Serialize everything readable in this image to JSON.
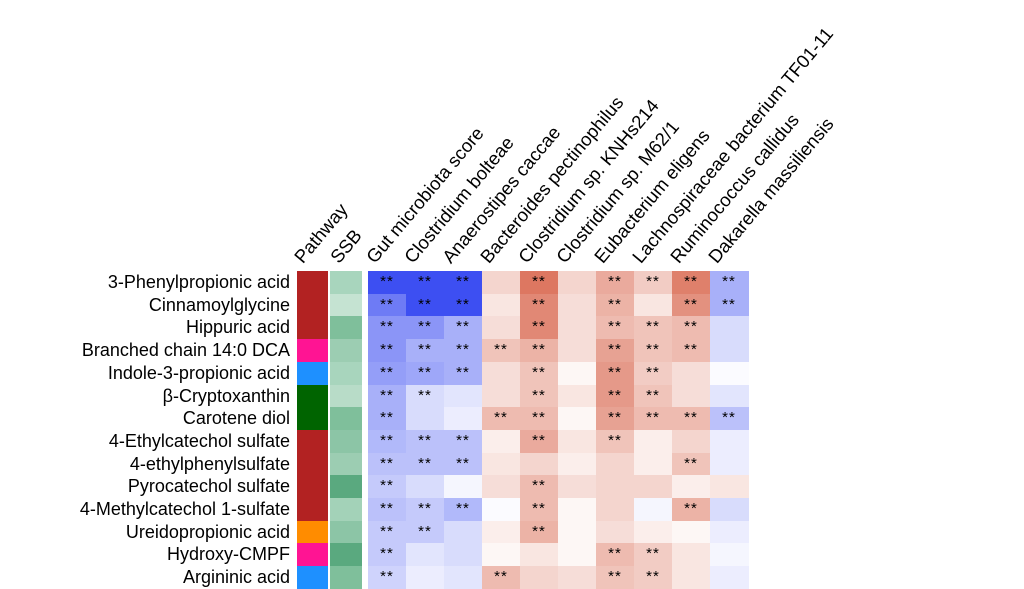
{
  "chart_data": {
    "type": "heatmap",
    "title": "",
    "annotation_columns": [
      "Pathway",
      "SSB"
    ],
    "columns": [
      "Gut microbiota score",
      "Clostridium bolteae",
      "Anaerostipes caccae",
      "Bacteroides pectinophilus",
      "Clostridium sp. KNHs214",
      "Clostridium sp. M62/1",
      "Eubacterium eligens",
      "Lachnospiraceae bacterium TF01-11",
      "Ruminococcus callidus",
      "Dakarella massiliensis"
    ],
    "rows": [
      "3-Phenylpropionic acid",
      "Cinnamoylglycine",
      "Hippuric acid",
      "Branched chain 14:0 DCA",
      "Indole-3-propionic acid",
      "β-Cryptoxanthin",
      "Carotene diol",
      "4-Ethylcatechol sulfate",
      "4-ethylphenylsulfate",
      "Pyrocatechol sulfate",
      "4-Methylcatechol 1-sulfate",
      "Ureidopropionic acid",
      "Hydroxy-CMPF",
      "Argininic acid"
    ],
    "pathway_colors": [
      "#b22222",
      "#b22222",
      "#b22222",
      "#ff1493",
      "#1e90ff",
      "#006400",
      "#006400",
      "#b22222",
      "#b22222",
      "#b22222",
      "#b22222",
      "#ff8c00",
      "#ff1493",
      "#1e90ff"
    ],
    "ssb_colors": [
      "#a8d5bd",
      "#c5e3d2",
      "#7fbf9b",
      "#9ccdb2",
      "#a8d5bd",
      "#b8dcc8",
      "#7fbf9b",
      "#8cc5a6",
      "#9ccdb2",
      "#5aa97f",
      "#a3d2b8",
      "#8cc5a6",
      "#5aa97f",
      "#7fbf9b"
    ],
    "values": [
      [
        -1,
        -1,
        -1,
        0.25,
        0.8,
        0.25,
        0.5,
        0.3,
        0.75,
        -0.45
      ],
      [
        -0.75,
        -1,
        -1,
        0.15,
        0.7,
        0.2,
        0.45,
        0.15,
        0.65,
        -0.45
      ],
      [
        -0.6,
        -0.6,
        -0.45,
        0.2,
        0.7,
        0.2,
        0.4,
        0.35,
        0.4,
        -0.2
      ],
      [
        -0.6,
        -0.45,
        -0.45,
        0.35,
        0.45,
        0.2,
        0.55,
        0.35,
        0.4,
        -0.2
      ],
      [
        -0.55,
        -0.5,
        -0.45,
        0.2,
        0.35,
        0.05,
        0.6,
        0.3,
        0.2,
        -0.02
      ],
      [
        -0.45,
        -0.2,
        -0.15,
        0.2,
        0.35,
        0.15,
        0.6,
        0.35,
        0.2,
        -0.15
      ],
      [
        -0.45,
        -0.2,
        -0.1,
        0.4,
        0.4,
        0.05,
        0.55,
        0.4,
        0.4,
        -0.35
      ],
      [
        -0.4,
        -0.35,
        -0.35,
        0.1,
        0.5,
        0.15,
        0.35,
        0.1,
        0.25,
        -0.1
      ],
      [
        -0.35,
        -0.35,
        -0.35,
        0.15,
        0.25,
        0.1,
        0.25,
        0.1,
        0.35,
        -0.1
      ],
      [
        -0.3,
        -0.2,
        -0.05,
        0.2,
        0.4,
        0.2,
        0.25,
        0.25,
        0.1,
        0.15
      ],
      [
        -0.35,
        -0.3,
        -0.4,
        -0.02,
        0.4,
        0.05,
        0.25,
        -0.05,
        0.45,
        -0.2
      ],
      [
        -0.3,
        -0.3,
        -0.2,
        0.1,
        0.45,
        0.05,
        0.2,
        0.1,
        0.05,
        -0.1
      ],
      [
        -0.3,
        -0.15,
        -0.2,
        0.05,
        0.15,
        0.05,
        0.4,
        0.3,
        0.15,
        -0.05
      ],
      [
        -0.25,
        -0.1,
        -0.15,
        0.4,
        0.25,
        0.2,
        0.35,
        0.3,
        0.15,
        -0.1
      ]
    ],
    "significance": [
      [
        "**",
        "**",
        "**",
        "",
        "**",
        "",
        "**",
        "**",
        "**",
        "**"
      ],
      [
        "**",
        "**",
        "**",
        "",
        "**",
        "",
        "**",
        "",
        "**",
        "**"
      ],
      [
        "**",
        "**",
        "**",
        "",
        "**",
        "",
        "**",
        "**",
        "**",
        ""
      ],
      [
        "**",
        "**",
        "**",
        "**",
        "**",
        "",
        "**",
        "**",
        "**",
        ""
      ],
      [
        "**",
        "**",
        "**",
        "",
        "**",
        "",
        "**",
        "**",
        "",
        ""
      ],
      [
        "**",
        "**",
        "",
        "",
        "**",
        "",
        "**",
        "**",
        "",
        ""
      ],
      [
        "**",
        "",
        "",
        "**",
        "**",
        "",
        "**",
        "**",
        "**",
        "**"
      ],
      [
        "**",
        "**",
        "**",
        "",
        "**",
        "",
        "**",
        "",
        "",
        ""
      ],
      [
        "**",
        "**",
        "**",
        "",
        "",
        "",
        "",
        "",
        "**",
        ""
      ],
      [
        "**",
        "",
        "",
        "",
        "**",
        "",
        "",
        "",
        "",
        ""
      ],
      [
        "**",
        "**",
        "**",
        "",
        "**",
        "",
        "",
        "",
        "**",
        ""
      ],
      [
        "**",
        "**",
        "",
        "",
        "**",
        "",
        "",
        "",
        "",
        ""
      ],
      [
        "**",
        "",
        "",
        "",
        "",
        "",
        "**",
        "**",
        "",
        ""
      ],
      [
        "**",
        "",
        "",
        "**",
        "",
        "",
        "**",
        "**",
        "",
        ""
      ]
    ],
    "value_range": [
      -1,
      1
    ],
    "color_scale": {
      "low": "#3d4ff2",
      "mid": "#ffffff",
      "high": "#d4553a"
    },
    "legend": "none"
  }
}
